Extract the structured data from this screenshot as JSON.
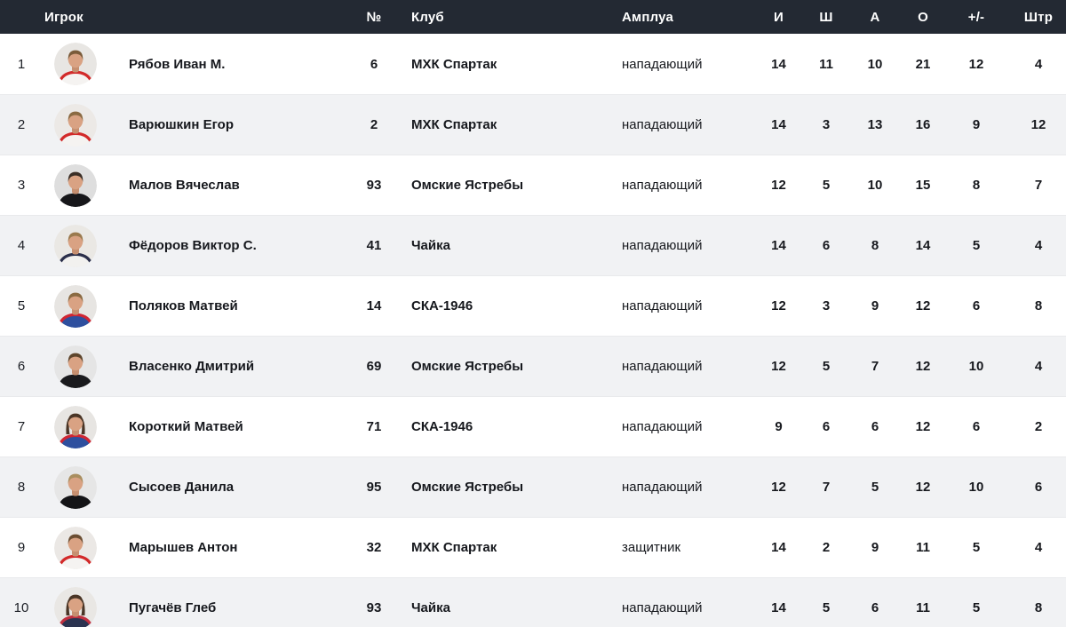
{
  "colors": {
    "header_bg": "#232933",
    "header_text": "#ffffff",
    "row_bg": "#ffffff",
    "row_alt_bg": "#f1f2f4",
    "row_border": "#e9eaec",
    "text": "#16181d",
    "skin": "#d9a283",
    "skin_shadow": "#c68f70"
  },
  "table": {
    "columns": {
      "player": "Игрок",
      "number": "№",
      "club": "Клуб",
      "position": "Амплуа",
      "games": "И",
      "goals": "Ш",
      "assists": "А",
      "points": "О",
      "plus_minus": "+/-",
      "penalty": "Штр"
    },
    "players": [
      {
        "rank": "1",
        "name": "Рябов Иван М.",
        "number": "6",
        "club": "МХК Спартак",
        "position": "нападающий",
        "games": "14",
        "goals": "11",
        "assists": "10",
        "points": "21",
        "plus_minus": "12",
        "penalty": "4",
        "avatar": {
          "bg": "#e8e6e3",
          "hair": "#7a5b3a",
          "jersey": "#f5f3f1",
          "trim": "#d22a2a",
          "style": "short"
        }
      },
      {
        "rank": "2",
        "name": "Варюшкин Егор",
        "number": "2",
        "club": "МХК Спартак",
        "position": "нападающий",
        "games": "14",
        "goals": "3",
        "assists": "13",
        "points": "16",
        "plus_minus": "9",
        "penalty": "12",
        "avatar": {
          "bg": "#ece9e6",
          "hair": "#8a6a42",
          "jersey": "#f5f3f1",
          "trim": "#d22a2a",
          "style": "short"
        }
      },
      {
        "rank": "3",
        "name": "Малов Вячеслав",
        "number": "93",
        "club": "Омские Ястребы",
        "position": "нападающий",
        "games": "12",
        "goals": "5",
        "assists": "10",
        "points": "15",
        "plus_minus": "8",
        "penalty": "7",
        "avatar": {
          "bg": "#dedede",
          "hair": "#3a2e26",
          "jersey": "#17171a",
          "trim": "",
          "style": "short"
        }
      },
      {
        "rank": "4",
        "name": "Фёдоров Виктор С.",
        "number": "41",
        "club": "Чайка",
        "position": "нападающий",
        "games": "14",
        "goals": "6",
        "assists": "8",
        "points": "14",
        "plus_minus": "5",
        "penalty": "4",
        "avatar": {
          "bg": "#eae8e4",
          "hair": "#9a7a4e",
          "jersey": "#f2f1ef",
          "trim": "#2b2f4a",
          "style": "short"
        }
      },
      {
        "rank": "5",
        "name": "Поляков Матвей",
        "number": "14",
        "club": "СКА-1946",
        "position": "нападающий",
        "games": "12",
        "goals": "3",
        "assists": "9",
        "points": "12",
        "plus_minus": "6",
        "penalty": "8",
        "avatar": {
          "bg": "#e7e5e2",
          "hair": "#8a6a42",
          "jersey": "#2e4f9e",
          "trim": "#cf2633",
          "style": "short"
        }
      },
      {
        "rank": "6",
        "name": "Власенко Дмитрий",
        "number": "69",
        "club": "Омские Ястребы",
        "position": "нападающий",
        "games": "12",
        "goals": "5",
        "assists": "7",
        "points": "12",
        "plus_minus": "10",
        "penalty": "4",
        "avatar": {
          "bg": "#e5e5e5",
          "hair": "#5d452c",
          "jersey": "#1a1a1d",
          "trim": "",
          "style": "short"
        }
      },
      {
        "rank": "7",
        "name": "Короткий Матвей",
        "number": "71",
        "club": "СКА-1946",
        "position": "нападающий",
        "games": "9",
        "goals": "6",
        "assists": "6",
        "points": "12",
        "plus_minus": "6",
        "penalty": "2",
        "avatar": {
          "bg": "#e7e5e2",
          "hair": "#4a3526",
          "jersey": "#2e4f9e",
          "trim": "#cf2633",
          "style": "long"
        }
      },
      {
        "rank": "8",
        "name": "Сысоев Данила",
        "number": "95",
        "club": "Омские Ястребы",
        "position": "нападающий",
        "games": "12",
        "goals": "7",
        "assists": "5",
        "points": "12",
        "plus_minus": "10",
        "penalty": "6",
        "avatar": {
          "bg": "#e6e6e6",
          "hair": "#a98e5f",
          "jersey": "#141417",
          "trim": "",
          "style": "short"
        }
      },
      {
        "rank": "9",
        "name": "Марышев Антон",
        "number": "32",
        "club": "МХК Спартак",
        "position": "защитник",
        "games": "14",
        "goals": "2",
        "assists": "9",
        "points": "11",
        "plus_minus": "5",
        "penalty": "4",
        "avatar": {
          "bg": "#ebe8e5",
          "hair": "#6b4e33",
          "jersey": "#f5f3f1",
          "trim": "#d22a2a",
          "style": "short"
        }
      },
      {
        "rank": "10",
        "name": "Пугачёв Глеб",
        "number": "93",
        "club": "Чайка",
        "position": "нападающий",
        "games": "14",
        "goals": "5",
        "assists": "6",
        "points": "11",
        "plus_minus": "5",
        "penalty": "8",
        "avatar": {
          "bg": "#e9e7e4",
          "hair": "#4a3526",
          "jersey": "#2b3350",
          "trim": "#c03040",
          "style": "long"
        }
      }
    ]
  }
}
